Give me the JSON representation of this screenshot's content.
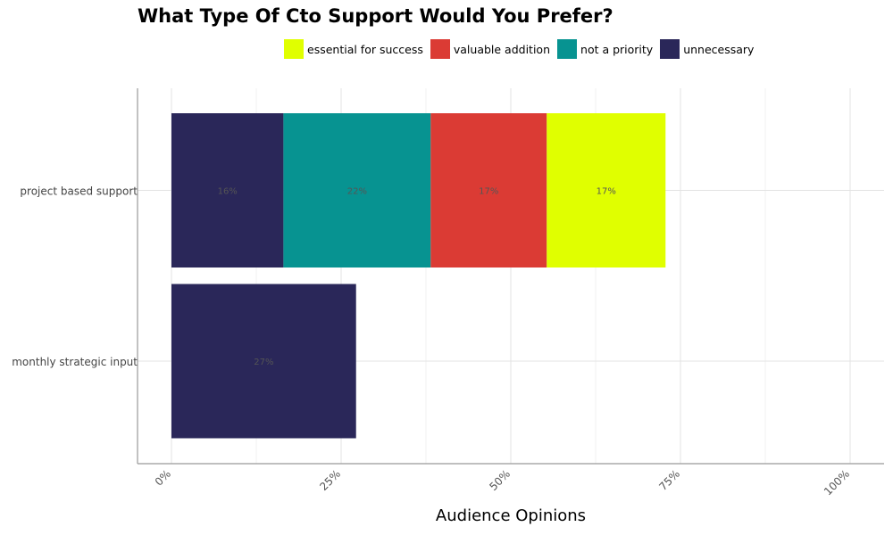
{
  "chart_data": {
    "type": "bar",
    "orientation": "horizontal",
    "stacked": true,
    "title": "What Type Of Cto Support Would You Prefer?",
    "xlabel": "Audience Opinions",
    "ylabel": "",
    "xlim": [
      0,
      100
    ],
    "x_ticks": [
      0,
      25,
      50,
      75,
      100
    ],
    "x_tick_labels": [
      "0%",
      "25%",
      "50%",
      "75%",
      "100%"
    ],
    "categories": [
      "project based support",
      "monthly strategic input"
    ],
    "legend_position": "top",
    "grid": true,
    "series": [
      {
        "name": "unnecessary",
        "color": "#2a2759",
        "values": [
          16.5,
          27.2
        ],
        "labels": [
          "16%",
          "27%"
        ]
      },
      {
        "name": "not a priority",
        "color": "#079391",
        "values": [
          21.7,
          0
        ],
        "labels": [
          "22%",
          ""
        ]
      },
      {
        "name": "valuable addition",
        "color": "#db3b34",
        "values": [
          17.1,
          0
        ],
        "labels": [
          "17%",
          ""
        ]
      },
      {
        "name": "essential for success",
        "color": "#e0ff00",
        "values": [
          17.5,
          0
        ],
        "labels": [
          "17%",
          ""
        ]
      }
    ],
    "legend_order": [
      "essential for success",
      "valuable addition",
      "not a priority",
      "unnecessary"
    ]
  }
}
